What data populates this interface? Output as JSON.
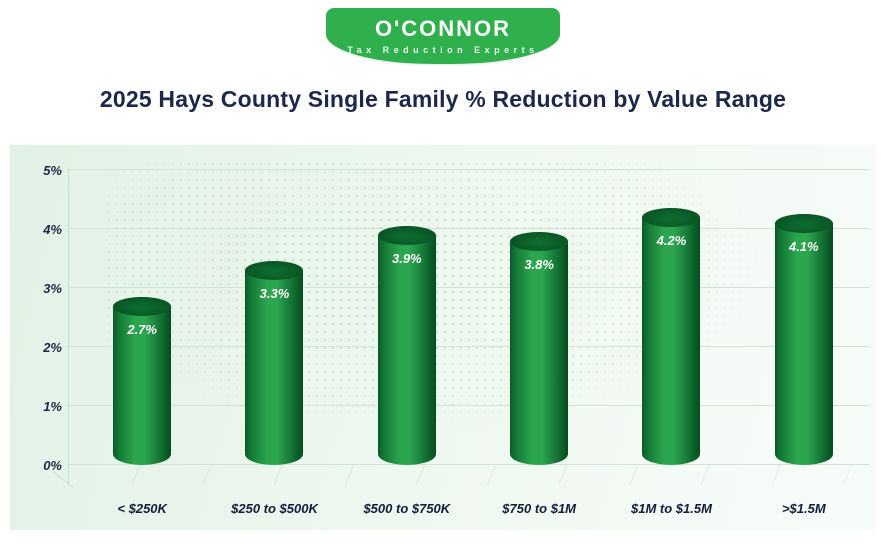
{
  "logo": {
    "name": "O'CONNOR",
    "tagline": "Tax Reduction Experts",
    "bg_color": "#2fb04c"
  },
  "title": "2025 Hays County Single Family % Reduction by Value Range",
  "chart_data": {
    "type": "bar",
    "title": "2025 Hays County Single Family % Reduction by Value Range",
    "categories": [
      "< $250K",
      "$250 to $500K",
      "$500 to $750K",
      "$750 to $1M",
      "$1M to $1.5M",
      ">$1.5M"
    ],
    "values": [
      2.7,
      3.3,
      3.9,
      3.8,
      4.2,
      4.1
    ],
    "value_labels": [
      "2.7%",
      "3.3%",
      "3.9%",
      "3.8%",
      "4.2%",
      "4.1%"
    ],
    "xlabel": "",
    "ylabel": "",
    "ylim": [
      0,
      5
    ],
    "yticks": [
      "0%",
      "1%",
      "2%",
      "3%",
      "4%",
      "5%"
    ],
    "grid": true,
    "legend": false,
    "bar_color": "#1e9c46",
    "bar_style": "3d-cylinder",
    "background": "light-green gradient with dotted world map"
  }
}
